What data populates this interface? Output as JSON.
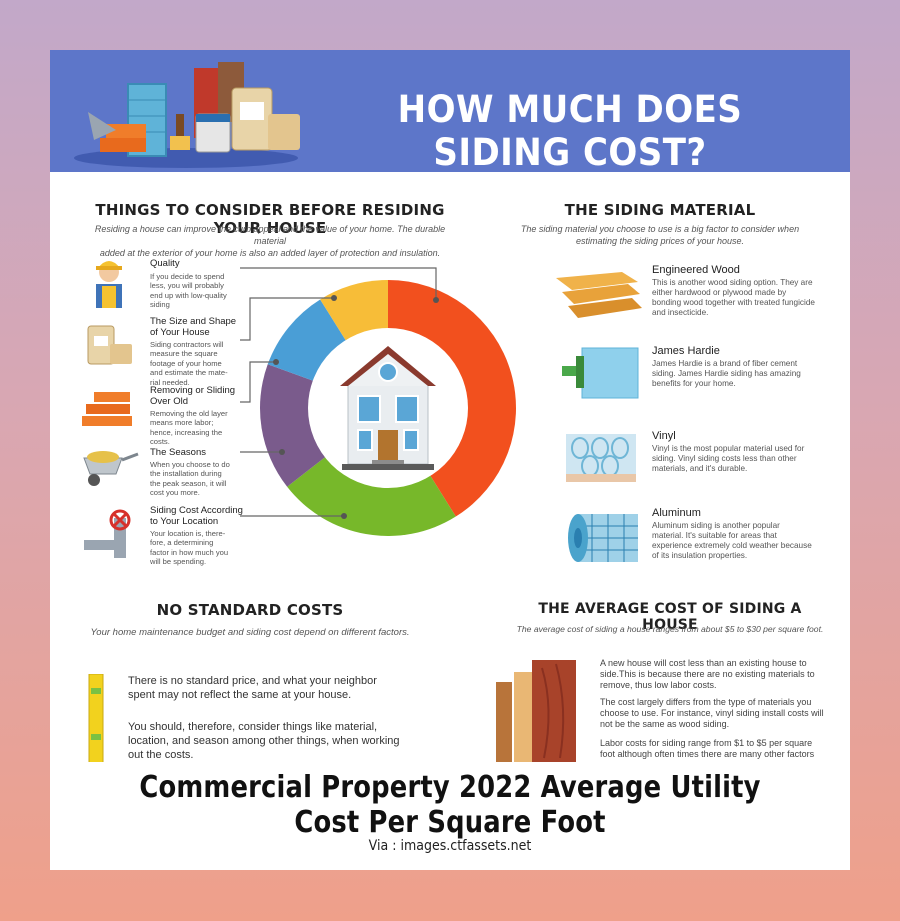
{
  "banner": {
    "title": "HOW MUCH DOES SIDING COST?"
  },
  "consider": {
    "title": "THINGS TO CONSIDER BEFORE RESIDING YOUR HOUSE",
    "subtitle1": "Residing a house can improve the curb appeal and the value of your home. The durable material",
    "subtitle2": "added at the exterior of your home is also an added layer of protection and insulation.",
    "items": [
      {
        "title": [
          "Quality"
        ],
        "text": [
          "If you decide to spend",
          "less, you will probably",
          "end up with low-quality",
          "siding"
        ],
        "icon": "worker-icon"
      },
      {
        "title": [
          "The Size and Shape",
          "of Your House"
        ],
        "text": [
          "Siding contractors will",
          "measure the square",
          "footage of your home",
          "and estimate the mate-",
          "rial needed."
        ],
        "icon": "cement-bag-icon"
      },
      {
        "title": [
          "Removing or Sliding",
          "Over Old"
        ],
        "text": [
          "Removing the old layer",
          "means more labor;",
          "hence, increasing the",
          "costs."
        ],
        "icon": "bricks-icon"
      },
      {
        "title": [
          "The Seasons"
        ],
        "text": [
          "When you choose to do",
          "the installation during",
          "the peak season, it will",
          "cost you more."
        ],
        "icon": "wheelbarrow-icon"
      },
      {
        "title": [
          "Siding Cost According",
          "to Your Location"
        ],
        "text": [
          "Your location is, there-",
          "fore, a determining",
          "factor in how much you",
          "will be spending."
        ],
        "icon": "pipe-valve-icon"
      }
    ]
  },
  "donut": {
    "colors": {
      "red": "#f2501e",
      "green": "#77b82a",
      "purple": "#7a5b8c",
      "blue": "#4a9ed6",
      "yellow": "#f7bd38"
    }
  },
  "material": {
    "title": "THE SIDING MATERIAL",
    "subtitle1": "The siding material you choose to use is a big factor to consider when",
    "subtitle2": "estimating the siding prices of your house.",
    "items": [
      {
        "title": "Engineered Wood",
        "text": [
          "This is another wood siding option. They are",
          "either hardwood or plywood made by",
          "bonding wood together with treated fungicide",
          "and insecticide."
        ],
        "icon": "wood-planks-icon"
      },
      {
        "title": "James Hardie",
        "text": [
          "James Hardie is a brand of fiber cement",
          "siding. James Hardie siding has amazing",
          "benefits for your home."
        ],
        "icon": "paint-roller-icon"
      },
      {
        "title": "Vinyl",
        "text": [
          "Vinyl is the most popular material used for",
          "siding. Vinyl siding costs less than other",
          "materials, and it's durable."
        ],
        "icon": "vinyl-roll-icon"
      },
      {
        "title": "Aluminum",
        "text": [
          "Aluminum siding is another popular",
          "material. It's suitable for areas that",
          "experience extremely cold weather because",
          "of its insulation properties."
        ],
        "icon": "mesh-roll-icon"
      }
    ]
  },
  "nostandard": {
    "title": "NO STANDARD COSTS",
    "subtitle": "Your home maintenance budget and siding cost depend on different factors.",
    "p1": [
      "There is no standard price, and what your neighbor",
      "spent may not reflect the same at your house."
    ],
    "p2": [
      "You should, therefore, consider things like material,",
      "location, and season among other things, when working",
      "out the costs."
    ]
  },
  "average": {
    "title": "THE AVERAGE COST OF SIDING A HOUSE",
    "subtitle": "The average cost of siding a house ranges from about $5 to $30 per square foot.",
    "p1": [
      "A new house will cost less than an existing house to",
      "side.This is because there are no existing materials to",
      "remove, thus low labor costs."
    ],
    "p2": [
      "The cost largely differs from the type of materials you",
      "choose to use. For instance, vinyl siding install costs will",
      "not be the same as wood siding."
    ],
    "p3": [
      "Labor costs for siding range from $1 to $5 per square",
      "foot although often times there are many other factors"
    ]
  },
  "caption": "Commercial Property 2022 Average Utility Cost Per Square Foot",
  "via": "Via : images.ctfassets.net"
}
